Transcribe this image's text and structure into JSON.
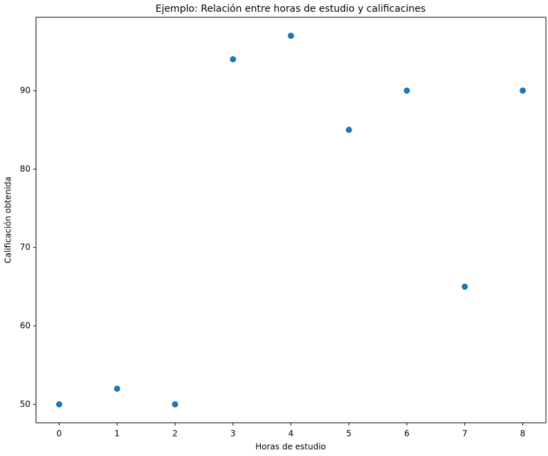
{
  "chart_data": {
    "type": "scatter",
    "title": "Ejemplo: Relación entre horas de estudio y calificacines",
    "x_label": "Horas de estudio",
    "y_label": "Calificación obtenida",
    "x": [
      0,
      1,
      2,
      3,
      4,
      5,
      6,
      7,
      8
    ],
    "values": [
      50,
      52,
      50,
      94,
      97,
      85,
      90,
      65,
      90
    ],
    "color": "#1f77b4",
    "xlim": [
      -0.4,
      8.4
    ],
    "xticks": [
      0,
      1,
      2,
      3,
      4,
      5,
      6,
      7,
      8
    ],
    "ylim": [
      47.65,
      99.35
    ],
    "yticks": [
      50,
      60,
      70,
      80,
      90
    ],
    "grid": false
  }
}
